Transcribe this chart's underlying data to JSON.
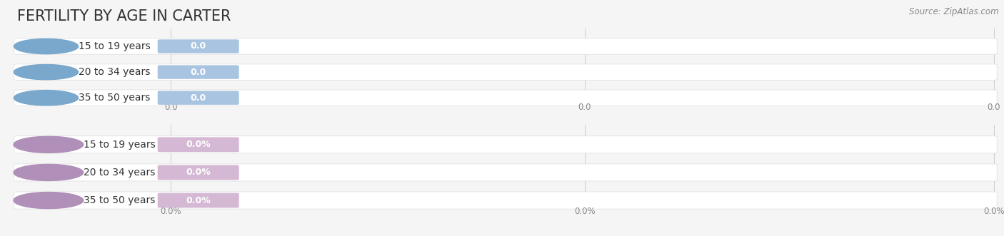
{
  "title": "FERTILITY BY AGE IN CARTER",
  "source": "Source: ZipAtlas.com",
  "top_section": {
    "categories": [
      "15 to 19 years",
      "20 to 34 years",
      "35 to 50 years"
    ],
    "values": [
      0.0,
      0.0,
      0.0
    ],
    "bar_color": "#a8c4e0",
    "circle_color": "#7aa8cc",
    "label_color": "#333333",
    "value_color": "#ffffff",
    "value_suffix": "",
    "xtick_labels": [
      "0.0",
      "0.0",
      "0.0"
    ]
  },
  "bottom_section": {
    "categories": [
      "15 to 19 years",
      "20 to 34 years",
      "35 to 50 years"
    ],
    "values": [
      0.0,
      0.0,
      0.0
    ],
    "bar_color": "#d4b8d4",
    "circle_color": "#b090b8",
    "label_color": "#333333",
    "value_color": "#ffffff",
    "value_suffix": "%",
    "xtick_labels": [
      "0.0%",
      "0.0%",
      "0.0%"
    ]
  },
  "bg_color": "#f5f5f5",
  "title_fontsize": 15,
  "label_fontsize": 10,
  "value_fontsize": 9,
  "source_fontsize": 8.5,
  "figsize": [
    14.06,
    3.31
  ],
  "dpi": 100
}
